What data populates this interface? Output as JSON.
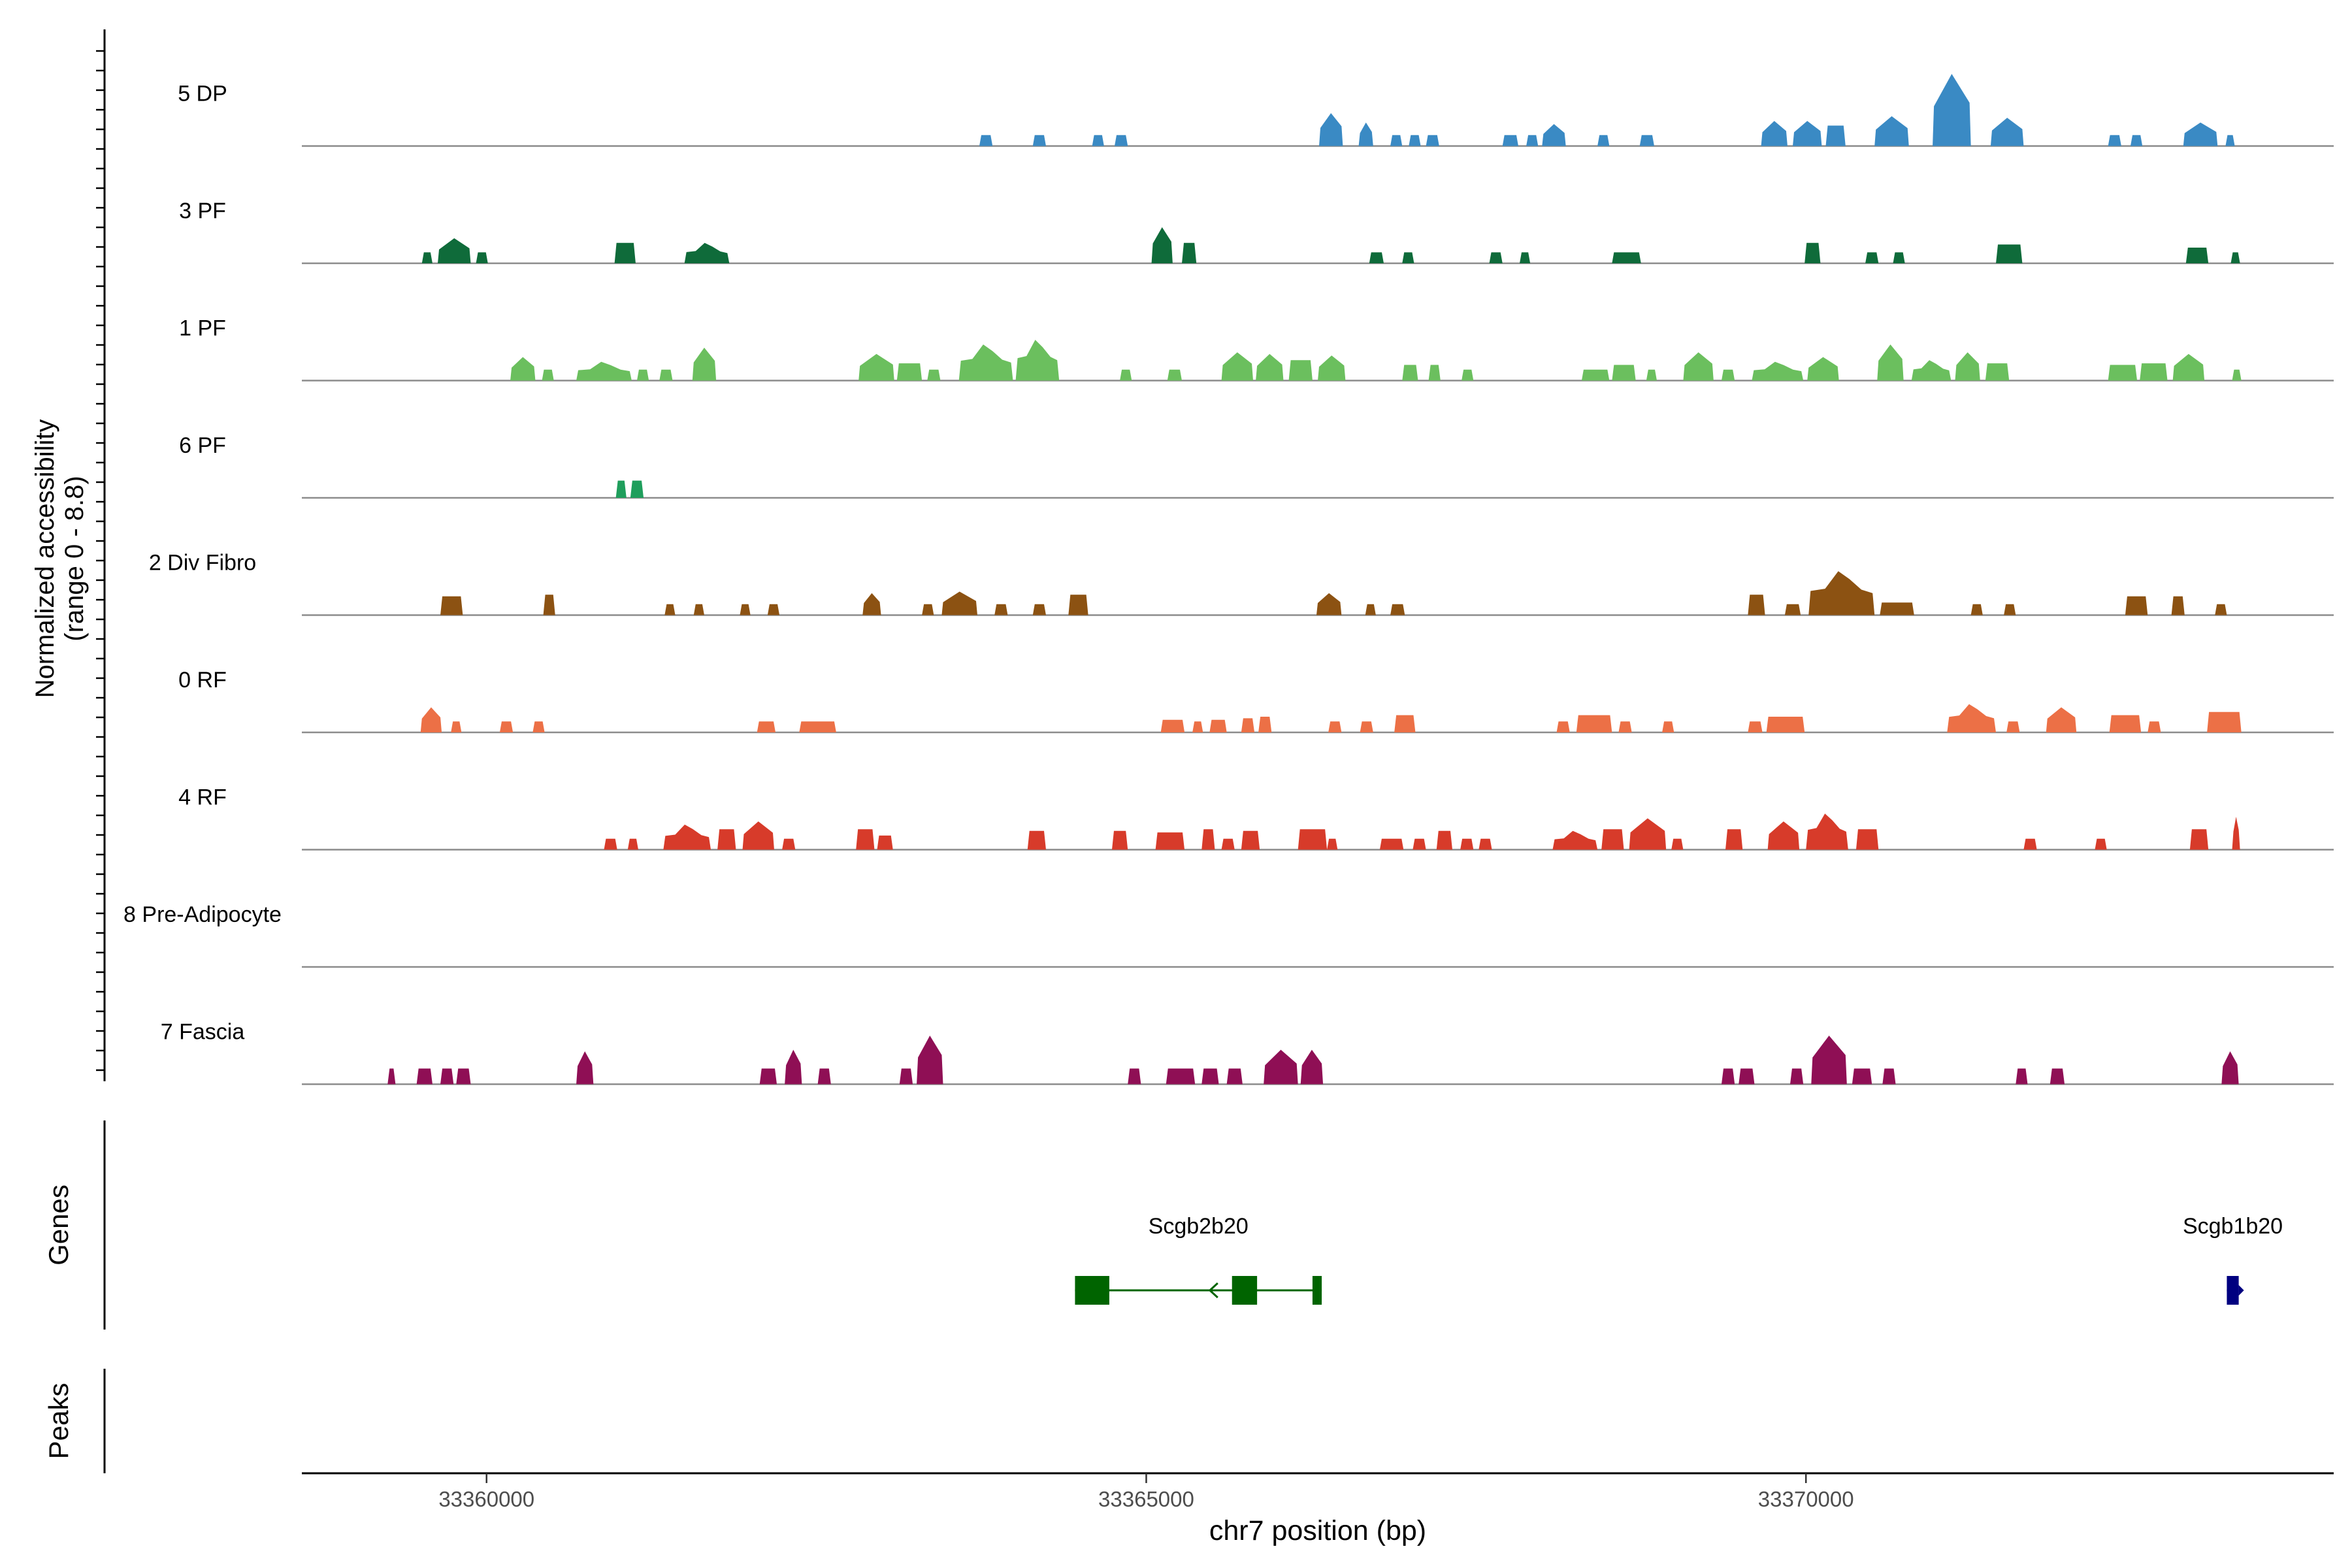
{
  "chart_data": {
    "type": "area",
    "title": "",
    "ylabel_line1": "Normalized accessibility",
    "ylabel_line2": "(range 0 - 8.8)",
    "y_range": [
      0,
      8.8
    ],
    "xlabel": "chr7 position (bp)",
    "xlim": [
      33358600,
      33374000
    ],
    "x_ticks": [
      33360000,
      33365000,
      33370000
    ],
    "x_tick_labels": [
      "33360000",
      "33365000",
      "33370000"
    ],
    "genes_label": "Genes",
    "peaks_label": "Peaks",
    "tracks": [
      {
        "name": "5 DP",
        "color": "#3a8ac4",
        "peaks": [
          [
            33363735,
            33363835,
            0.7
          ],
          [
            33364140,
            33364240,
            0.7
          ],
          [
            33364590,
            33364680,
            0.7
          ],
          [
            33364760,
            33364860,
            0.7
          ],
          [
            33366310,
            33366490,
            2.1
          ],
          [
            33366610,
            33366720,
            1.5
          ],
          [
            33366850,
            33366940,
            0.7
          ],
          [
            33366990,
            33367080,
            0.7
          ],
          [
            33367120,
            33367220,
            0.7
          ],
          [
            33367700,
            33367820,
            0.7
          ],
          [
            33367880,
            33367970,
            0.7
          ],
          [
            33368000,
            33368180,
            1.4
          ],
          [
            33368420,
            33368510,
            0.7
          ],
          [
            33368740,
            33368850,
            0.7
          ],
          [
            33369660,
            33369860,
            1.6
          ],
          [
            33369900,
            33370120,
            1.6
          ],
          [
            33370150,
            33370300,
            1.3
          ],
          [
            33370520,
            33370780,
            1.9
          ],
          [
            33370960,
            33371250,
            4.6
          ],
          [
            33371400,
            33371650,
            1.8
          ],
          [
            33372290,
            33372390,
            0.7
          ],
          [
            33372460,
            33372550,
            0.7
          ],
          [
            33372860,
            33373120,
            1.5
          ],
          [
            33373180,
            33373250,
            0.7
          ]
        ]
      },
      {
        "name": "3 PF",
        "color": "#0f6b3a",
        "peaks": [
          [
            33359510,
            33359590,
            0.7
          ],
          [
            33359630,
            33359880,
            1.6
          ],
          [
            33359920,
            33360010,
            0.7
          ],
          [
            33360970,
            33361130,
            1.3
          ],
          [
            33361500,
            33361840,
            1.3
          ],
          [
            33365040,
            33365200,
            2.3
          ],
          [
            33365270,
            33365380,
            1.3
          ],
          [
            33366690,
            33366800,
            0.7
          ],
          [
            33366940,
            33367030,
            0.7
          ],
          [
            33367600,
            33367700,
            0.7
          ],
          [
            33367830,
            33367910,
            0.7
          ],
          [
            33368530,
            33368750,
            0.7
          ],
          [
            33369990,
            33370110,
            1.3
          ],
          [
            33370450,
            33370550,
            0.7
          ],
          [
            33370660,
            33370750,
            0.7
          ],
          [
            33371440,
            33371640,
            1.2
          ],
          [
            33372880,
            33373050,
            1.0
          ],
          [
            33373220,
            33373290,
            0.7
          ]
        ]
      },
      {
        "name": "1 PF",
        "color": "#6bbf5e",
        "peaks": [
          [
            33360180,
            33360370,
            1.5
          ],
          [
            33360420,
            33360510,
            0.7
          ],
          [
            33360680,
            33361100,
            1.2
          ],
          [
            33361140,
            33361230,
            0.7
          ],
          [
            33361310,
            33361410,
            0.7
          ],
          [
            33361560,
            33361740,
            2.1
          ],
          [
            33362820,
            33363090,
            1.7
          ],
          [
            33363110,
            33363300,
            1.1
          ],
          [
            33363340,
            33363440,
            0.7
          ],
          [
            33363580,
            33363990,
            2.3
          ],
          [
            33364010,
            33364340,
            2.6
          ],
          [
            33364800,
            33364890,
            0.7
          ],
          [
            33365160,
            33365270,
            0.7
          ],
          [
            33365570,
            33365810,
            1.8
          ],
          [
            33365830,
            33366040,
            1.7
          ],
          [
            33366080,
            33366260,
            1.3
          ],
          [
            33366300,
            33366510,
            1.6
          ],
          [
            33366940,
            33367060,
            1.0
          ],
          [
            33367140,
            33367230,
            1.0
          ],
          [
            33367390,
            33367480,
            0.7
          ],
          [
            33368300,
            33368510,
            0.7
          ],
          [
            33368530,
            33368710,
            1.0
          ],
          [
            33368790,
            33368870,
            0.7
          ],
          [
            33369070,
            33369300,
            1.8
          ],
          [
            33369360,
            33369460,
            0.7
          ],
          [
            33369590,
            33369980,
            1.2
          ],
          [
            33370010,
            33370250,
            1.5
          ],
          [
            33370540,
            33370740,
            2.3
          ],
          [
            33370800,
            33371100,
            1.3
          ],
          [
            33371130,
            33371320,
            1.8
          ],
          [
            33371360,
            33371540,
            1.1
          ],
          [
            33372290,
            33372510,
            1.0
          ],
          [
            33372530,
            33372740,
            1.1
          ],
          [
            33372780,
            33373020,
            1.7
          ],
          [
            33373230,
            33373300,
            0.7
          ]
        ]
      },
      {
        "name": "6 PF",
        "color": "#1f9e5c",
        "peaks": [
          [
            33360980,
            33361060,
            1.1
          ],
          [
            33361090,
            33361190,
            1.1
          ]
        ]
      },
      {
        "name": "2 Div Fibro",
        "color": "#8c5212",
        "peaks": [
          [
            33359650,
            33359820,
            1.2
          ],
          [
            33360430,
            33360520,
            1.3
          ],
          [
            33361350,
            33361430,
            0.7
          ],
          [
            33361570,
            33361650,
            0.7
          ],
          [
            33361920,
            33362000,
            0.7
          ],
          [
            33362130,
            33362220,
            0.7
          ],
          [
            33362850,
            33362990,
            1.4
          ],
          [
            33363300,
            33363390,
            0.7
          ],
          [
            33363450,
            33363720,
            1.5
          ],
          [
            33363850,
            33363950,
            0.7
          ],
          [
            33364140,
            33364240,
            0.7
          ],
          [
            33364410,
            33364560,
            1.3
          ],
          [
            33366290,
            33366480,
            1.4
          ],
          [
            33366660,
            33366740,
            0.7
          ],
          [
            33366850,
            33366960,
            0.7
          ],
          [
            33369560,
            33369690,
            1.3
          ],
          [
            33369840,
            33369960,
            0.7
          ],
          [
            33370020,
            33370520,
            2.8
          ],
          [
            33370560,
            33370820,
            0.8
          ],
          [
            33371250,
            33371340,
            0.7
          ],
          [
            33371500,
            33371590,
            0.7
          ],
          [
            33372420,
            33372590,
            1.2
          ],
          [
            33372770,
            33372870,
            1.2
          ],
          [
            33373100,
            33373190,
            0.7
          ]
        ]
      },
      {
        "name": "0 RF",
        "color": "#ec7046",
        "peaks": [
          [
            33359500,
            33359660,
            1.6
          ],
          [
            33359730,
            33359810,
            0.7
          ],
          [
            33360100,
            33360200,
            0.7
          ],
          [
            33360350,
            33360440,
            0.7
          ],
          [
            33362050,
            33362190,
            0.7
          ],
          [
            33362370,
            33362650,
            0.7
          ],
          [
            33365110,
            33365290,
            0.8
          ],
          [
            33365350,
            33365430,
            0.7
          ],
          [
            33365480,
            33365610,
            0.8
          ],
          [
            33365720,
            33365820,
            0.9
          ],
          [
            33365850,
            33365950,
            1.0
          ],
          [
            33366380,
            33366480,
            0.7
          ],
          [
            33366620,
            33366720,
            0.7
          ],
          [
            33366880,
            33367040,
            1.1
          ],
          [
            33368110,
            33368210,
            0.7
          ],
          [
            33368260,
            33368530,
            1.1
          ],
          [
            33368580,
            33368680,
            0.7
          ],
          [
            33368910,
            33369000,
            0.7
          ],
          [
            33369560,
            33369670,
            0.7
          ],
          [
            33369700,
            33369990,
            1.0
          ],
          [
            33371070,
            33371440,
            1.8
          ],
          [
            33371520,
            33371620,
            0.7
          ],
          [
            33371820,
            33372050,
            1.6
          ],
          [
            33372300,
            33372540,
            1.1
          ],
          [
            33372590,
            33372690,
            0.7
          ],
          [
            33373040,
            33373300,
            1.3
          ]
        ]
      },
      {
        "name": "4 RF",
        "color": "#d73b2a",
        "peaks": [
          [
            33360890,
            33360990,
            0.7
          ],
          [
            33361070,
            33361150,
            0.7
          ],
          [
            33361340,
            33361700,
            1.6
          ],
          [
            33361750,
            33361890,
            1.3
          ],
          [
            33361940,
            33362180,
            1.8
          ],
          [
            33362240,
            33362340,
            0.7
          ],
          [
            33362800,
            33362940,
            1.3
          ],
          [
            33362960,
            33363080,
            0.9
          ],
          [
            33364100,
            33364240,
            1.2
          ],
          [
            33364740,
            33364860,
            1.2
          ],
          [
            33365070,
            33365290,
            1.1
          ],
          [
            33365420,
            33365520,
            1.3
          ],
          [
            33365570,
            33365670,
            0.7
          ],
          [
            33365720,
            33365860,
            1.2
          ],
          [
            33366150,
            33366370,
            1.3
          ],
          [
            33366370,
            33366450,
            0.7
          ],
          [
            33366770,
            33366950,
            0.7
          ],
          [
            33367020,
            33367120,
            0.7
          ],
          [
            33367200,
            33367320,
            1.2
          ],
          [
            33367380,
            33367480,
            0.7
          ],
          [
            33367520,
            33367620,
            0.7
          ],
          [
            33368080,
            33368420,
            1.2
          ],
          [
            33368450,
            33368620,
            1.3
          ],
          [
            33368660,
            33368940,
            2.0
          ],
          [
            33368980,
            33369070,
            0.7
          ],
          [
            33369390,
            33369520,
            1.3
          ],
          [
            33369710,
            33369950,
            1.8
          ],
          [
            33370000,
            33370320,
            2.3
          ],
          [
            33370380,
            33370550,
            1.3
          ],
          [
            33371650,
            33371750,
            0.7
          ],
          [
            33372190,
            33372280,
            0.7
          ],
          [
            33372910,
            33373050,
            1.3
          ],
          [
            33373230,
            33373290,
            2.1
          ]
        ]
      },
      {
        "name": "8 Pre-Adipocyte",
        "color": "#6a3d9a",
        "peaks": []
      },
      {
        "name": "7 Fascia",
        "color": "#8f0f55",
        "peaks": [
          [
            33359250,
            33359310,
            1.0
          ],
          [
            33359470,
            33359590,
            1.0
          ],
          [
            33359650,
            33359750,
            1.0
          ],
          [
            33359770,
            33359880,
            1.0
          ],
          [
            33360680,
            33360810,
            2.1
          ],
          [
            33362070,
            33362200,
            1.0
          ],
          [
            33362260,
            33362390,
            2.2
          ],
          [
            33362510,
            33362610,
            1.0
          ],
          [
            33363130,
            33363230,
            1.0
          ],
          [
            33363260,
            33363460,
            3.1
          ],
          [
            33364860,
            33364960,
            1.0
          ],
          [
            33365150,
            33365370,
            1.0
          ],
          [
            33365420,
            33365550,
            1.0
          ],
          [
            33365610,
            33365730,
            1.0
          ],
          [
            33365890,
            33366150,
            2.2
          ],
          [
            33366170,
            33366340,
            2.2
          ],
          [
            33369360,
            33369460,
            1.0
          ],
          [
            33369490,
            33369610,
            1.0
          ],
          [
            33369880,
            33369980,
            1.0
          ],
          [
            33370040,
            33370310,
            3.1
          ],
          [
            33370350,
            33370500,
            1.0
          ],
          [
            33370580,
            33370680,
            1.0
          ],
          [
            33371590,
            33371680,
            1.0
          ],
          [
            33371850,
            33371960,
            1.0
          ],
          [
            33373150,
            33373280,
            2.1
          ]
        ]
      }
    ],
    "genes": [
      {
        "name": "Scgb2b20",
        "color": "#006400",
        "strand": "-",
        "start": 33364460,
        "end": 33366330,
        "exons": [
          [
            33364460,
            33364720
          ],
          [
            33365650,
            33365840
          ],
          [
            33366260,
            33366330
          ]
        ]
      },
      {
        "name": "Scgb1b20",
        "color": "#000080",
        "strand": "+",
        "start": 33373190,
        "end": 33373280,
        "exons": [
          [
            33373190,
            33373280
          ]
        ]
      }
    ]
  }
}
